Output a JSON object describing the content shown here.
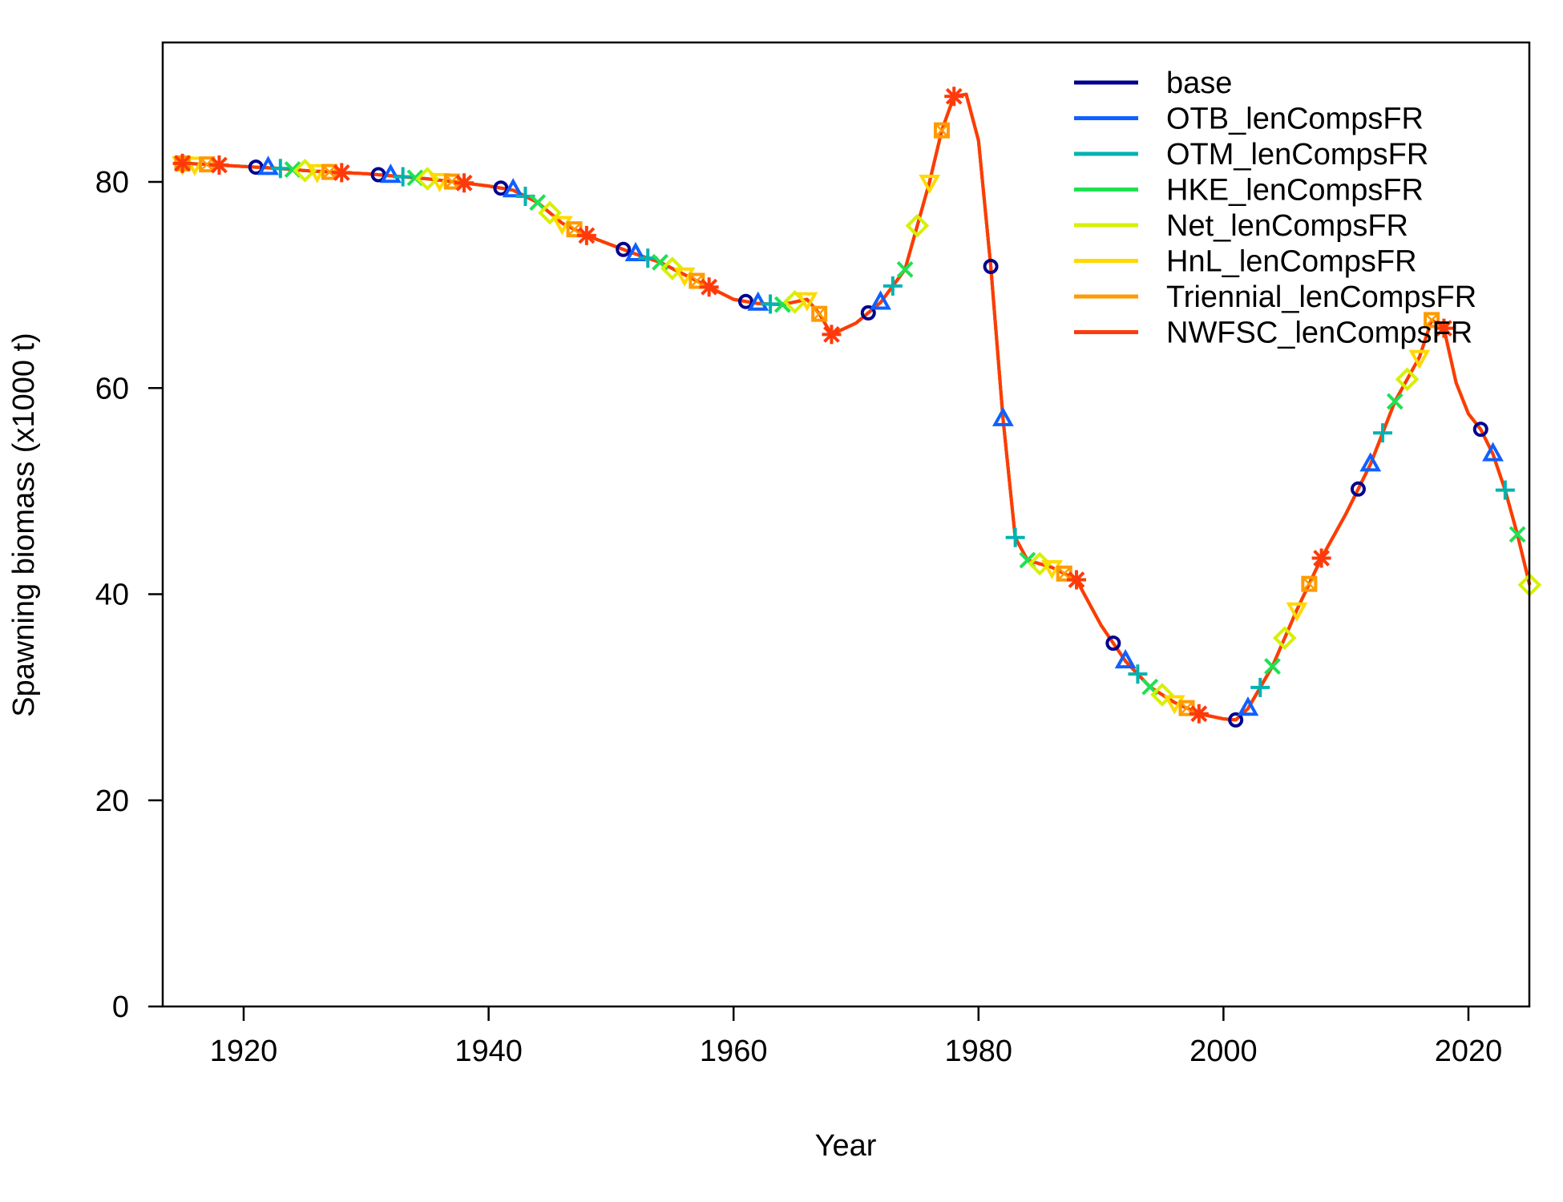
{
  "chart_data": {
    "type": "line",
    "title": "",
    "xlabel": "Year",
    "ylabel": "Spawning biomass (x1000 t)",
    "xlim": [
      1913,
      2025
    ],
    "ylim": [
      0,
      93
    ],
    "x_ticks": [
      1920,
      1940,
      1960,
      1980,
      2000,
      2020
    ],
    "y_ticks": [
      0,
      20,
      40,
      60,
      80
    ],
    "grid": false,
    "legend_position": "top-right",
    "x": [
      1915,
      1917,
      1920,
      1923,
      1925,
      1928,
      1930,
      1933,
      1935,
      1938,
      1940,
      1942,
      1944,
      1946,
      1948,
      1950,
      1952,
      1954,
      1956,
      1958,
      1960,
      1962,
      1964,
      1966,
      1967,
      1968,
      1970,
      1972,
      1974,
      1976,
      1977,
      1978,
      1979,
      1980,
      1981,
      1982,
      1983,
      1984,
      1986,
      1988,
      1990,
      1992,
      1994,
      1996,
      1998,
      2000,
      2001,
      2002,
      2004,
      2006,
      2008,
      2010,
      2012,
      2014,
      2016,
      2017,
      2018,
      2019,
      2020,
      2021,
      2022,
      2023,
      2024,
      2025
    ],
    "series": [
      {
        "name": "base",
        "color": "#00008f",
        "marker": "circle",
        "values": [
          81.8,
          81.7,
          81.5,
          81.3,
          81.1,
          80.9,
          80.8,
          80.5,
          80.3,
          79.9,
          79.6,
          79.2,
          78.0,
          76.0,
          74.8,
          73.9,
          73.0,
          72.2,
          71.0,
          69.8,
          68.6,
          68.2,
          68.1,
          68.6,
          67.2,
          65.2,
          66.3,
          68.3,
          71.5,
          80.0,
          85.0,
          88.3,
          88.5,
          84.0,
          71.8,
          57.0,
          45.5,
          43.3,
          42.6,
          41.4,
          37.0,
          33.5,
          31.0,
          29.5,
          28.4,
          27.9,
          27.8,
          28.9,
          33.0,
          38.5,
          43.5,
          47.8,
          52.6,
          58.7,
          63.0,
          66.6,
          65.8,
          60.5,
          57.5,
          56.0,
          53.6,
          50.1,
          45.8,
          40.9
        ]
      },
      {
        "name": "OTB_lenCompsFR",
        "color": "#0f60ff",
        "marker": "triangle-up",
        "values": [
          81.8,
          81.7,
          81.5,
          81.3,
          81.1,
          80.9,
          80.8,
          80.5,
          80.3,
          79.9,
          79.6,
          79.2,
          78.0,
          76.0,
          74.8,
          73.9,
          73.0,
          72.2,
          71.0,
          69.8,
          68.6,
          68.2,
          68.1,
          68.6,
          67.2,
          65.2,
          66.3,
          68.3,
          71.5,
          80.0,
          85.0,
          88.3,
          88.5,
          84.0,
          71.8,
          57.0,
          45.5,
          43.3,
          42.6,
          41.4,
          37.0,
          33.5,
          31.0,
          29.5,
          28.4,
          27.9,
          27.8,
          28.9,
          33.0,
          38.5,
          43.5,
          47.8,
          52.6,
          58.7,
          63.0,
          66.6,
          65.8,
          60.5,
          57.5,
          56.0,
          53.6,
          50.1,
          45.8,
          40.9
        ]
      },
      {
        "name": "OTM_lenCompsFR",
        "color": "#00b2b2",
        "marker": "plus",
        "values": [
          81.8,
          81.7,
          81.5,
          81.3,
          81.1,
          80.9,
          80.8,
          80.5,
          80.3,
          79.9,
          79.6,
          79.2,
          78.0,
          76.0,
          74.8,
          73.9,
          73.0,
          72.2,
          71.0,
          69.8,
          68.6,
          68.2,
          68.1,
          68.6,
          67.2,
          65.2,
          66.3,
          68.3,
          71.5,
          80.0,
          85.0,
          88.3,
          88.5,
          84.0,
          71.8,
          57.0,
          45.5,
          43.3,
          42.6,
          41.4,
          37.0,
          33.5,
          31.0,
          29.5,
          28.4,
          27.9,
          27.8,
          28.9,
          33.0,
          38.5,
          43.5,
          47.8,
          52.6,
          58.7,
          63.0,
          66.6,
          65.8,
          60.5,
          57.5,
          56.0,
          53.6,
          50.1,
          45.8,
          40.9
        ]
      },
      {
        "name": "HKE_lenCompsFR",
        "color": "#1fe052",
        "marker": "cross",
        "values": [
          81.8,
          81.7,
          81.5,
          81.3,
          81.1,
          80.9,
          80.8,
          80.5,
          80.3,
          79.9,
          79.6,
          79.2,
          78.0,
          76.0,
          74.8,
          73.9,
          73.0,
          72.2,
          71.0,
          69.8,
          68.6,
          68.2,
          68.1,
          68.6,
          67.2,
          65.2,
          66.3,
          68.3,
          71.5,
          80.0,
          85.0,
          88.3,
          88.5,
          84.0,
          71.8,
          57.0,
          45.5,
          43.3,
          42.6,
          41.4,
          37.0,
          33.5,
          31.0,
          29.5,
          28.4,
          27.9,
          27.8,
          28.9,
          33.0,
          38.5,
          43.5,
          47.8,
          52.6,
          58.7,
          63.0,
          66.6,
          65.8,
          60.5,
          57.5,
          56.0,
          53.6,
          50.1,
          45.8,
          40.9
        ]
      },
      {
        "name": "Net_lenCompsFR",
        "color": "#d6f000",
        "marker": "diamond",
        "values": [
          81.8,
          81.7,
          81.5,
          81.3,
          81.1,
          80.9,
          80.8,
          80.5,
          80.3,
          79.9,
          79.6,
          79.2,
          78.0,
          76.0,
          74.8,
          73.9,
          73.0,
          72.2,
          71.0,
          69.8,
          68.6,
          68.2,
          68.1,
          68.6,
          67.2,
          65.2,
          66.3,
          68.3,
          71.5,
          80.0,
          85.0,
          88.3,
          88.5,
          84.0,
          71.8,
          57.0,
          45.5,
          43.3,
          42.6,
          41.4,
          37.0,
          33.5,
          31.0,
          29.5,
          28.4,
          27.9,
          27.8,
          28.9,
          33.0,
          38.5,
          43.5,
          47.8,
          52.6,
          58.7,
          63.0,
          66.6,
          65.8,
          60.5,
          57.5,
          56.0,
          53.6,
          50.1,
          45.8,
          40.9
        ]
      },
      {
        "name": "HnL_lenCompsFR",
        "color": "#ffd900",
        "marker": "triangle-down",
        "values": [
          81.8,
          81.7,
          81.5,
          81.3,
          81.1,
          80.9,
          80.8,
          80.5,
          80.3,
          79.9,
          79.6,
          79.2,
          78.0,
          76.0,
          74.8,
          73.9,
          73.0,
          72.2,
          71.0,
          69.8,
          68.6,
          68.2,
          68.1,
          68.6,
          67.2,
          65.2,
          66.3,
          68.3,
          71.5,
          80.0,
          85.0,
          88.3,
          88.5,
          84.0,
          71.8,
          57.0,
          45.5,
          43.3,
          42.6,
          41.4,
          37.0,
          33.5,
          31.0,
          29.5,
          28.4,
          27.9,
          27.8,
          28.9,
          33.0,
          38.5,
          43.5,
          47.8,
          52.6,
          58.7,
          63.0,
          66.6,
          65.8,
          60.5,
          57.5,
          56.0,
          53.6,
          50.1,
          45.8,
          40.9
        ]
      },
      {
        "name": "Triennial_lenCompsFR",
        "color": "#ff9a00",
        "marker": "square-cross",
        "values": [
          81.8,
          81.7,
          81.5,
          81.3,
          81.1,
          80.9,
          80.8,
          80.5,
          80.3,
          79.9,
          79.6,
          79.2,
          78.0,
          76.0,
          74.8,
          73.9,
          73.0,
          72.2,
          71.0,
          69.8,
          68.6,
          68.2,
          68.1,
          68.6,
          67.2,
          65.2,
          66.3,
          68.3,
          71.5,
          80.0,
          85.0,
          88.3,
          88.5,
          84.0,
          71.8,
          57.0,
          45.5,
          43.3,
          42.6,
          41.4,
          37.0,
          33.5,
          31.0,
          29.5,
          28.4,
          27.9,
          27.8,
          28.9,
          33.0,
          38.5,
          43.5,
          47.8,
          52.6,
          58.7,
          63.0,
          66.6,
          65.8,
          60.5,
          57.5,
          56.0,
          53.6,
          50.1,
          45.8,
          40.9
        ]
      },
      {
        "name": "NWFSC_lenCompsFR",
        "color": "#ff3a0a",
        "marker": "asterisk",
        "values": [
          81.8,
          81.7,
          81.5,
          81.3,
          81.1,
          80.9,
          80.8,
          80.5,
          80.3,
          79.9,
          79.6,
          79.2,
          78.0,
          76.0,
          74.8,
          73.9,
          73.0,
          72.2,
          71.0,
          69.8,
          68.6,
          68.2,
          68.1,
          68.6,
          67.2,
          65.2,
          66.3,
          68.3,
          71.5,
          80.0,
          85.0,
          88.3,
          88.5,
          84.0,
          71.8,
          57.0,
          45.5,
          43.3,
          42.6,
          41.4,
          37.0,
          33.5,
          31.0,
          29.5,
          28.4,
          27.9,
          27.8,
          28.9,
          33.0,
          38.5,
          43.5,
          47.8,
          52.6,
          58.7,
          63.0,
          66.6,
          65.8,
          60.5,
          57.5,
          56.0,
          53.6,
          50.1,
          45.8,
          40.9
        ]
      }
    ]
  }
}
